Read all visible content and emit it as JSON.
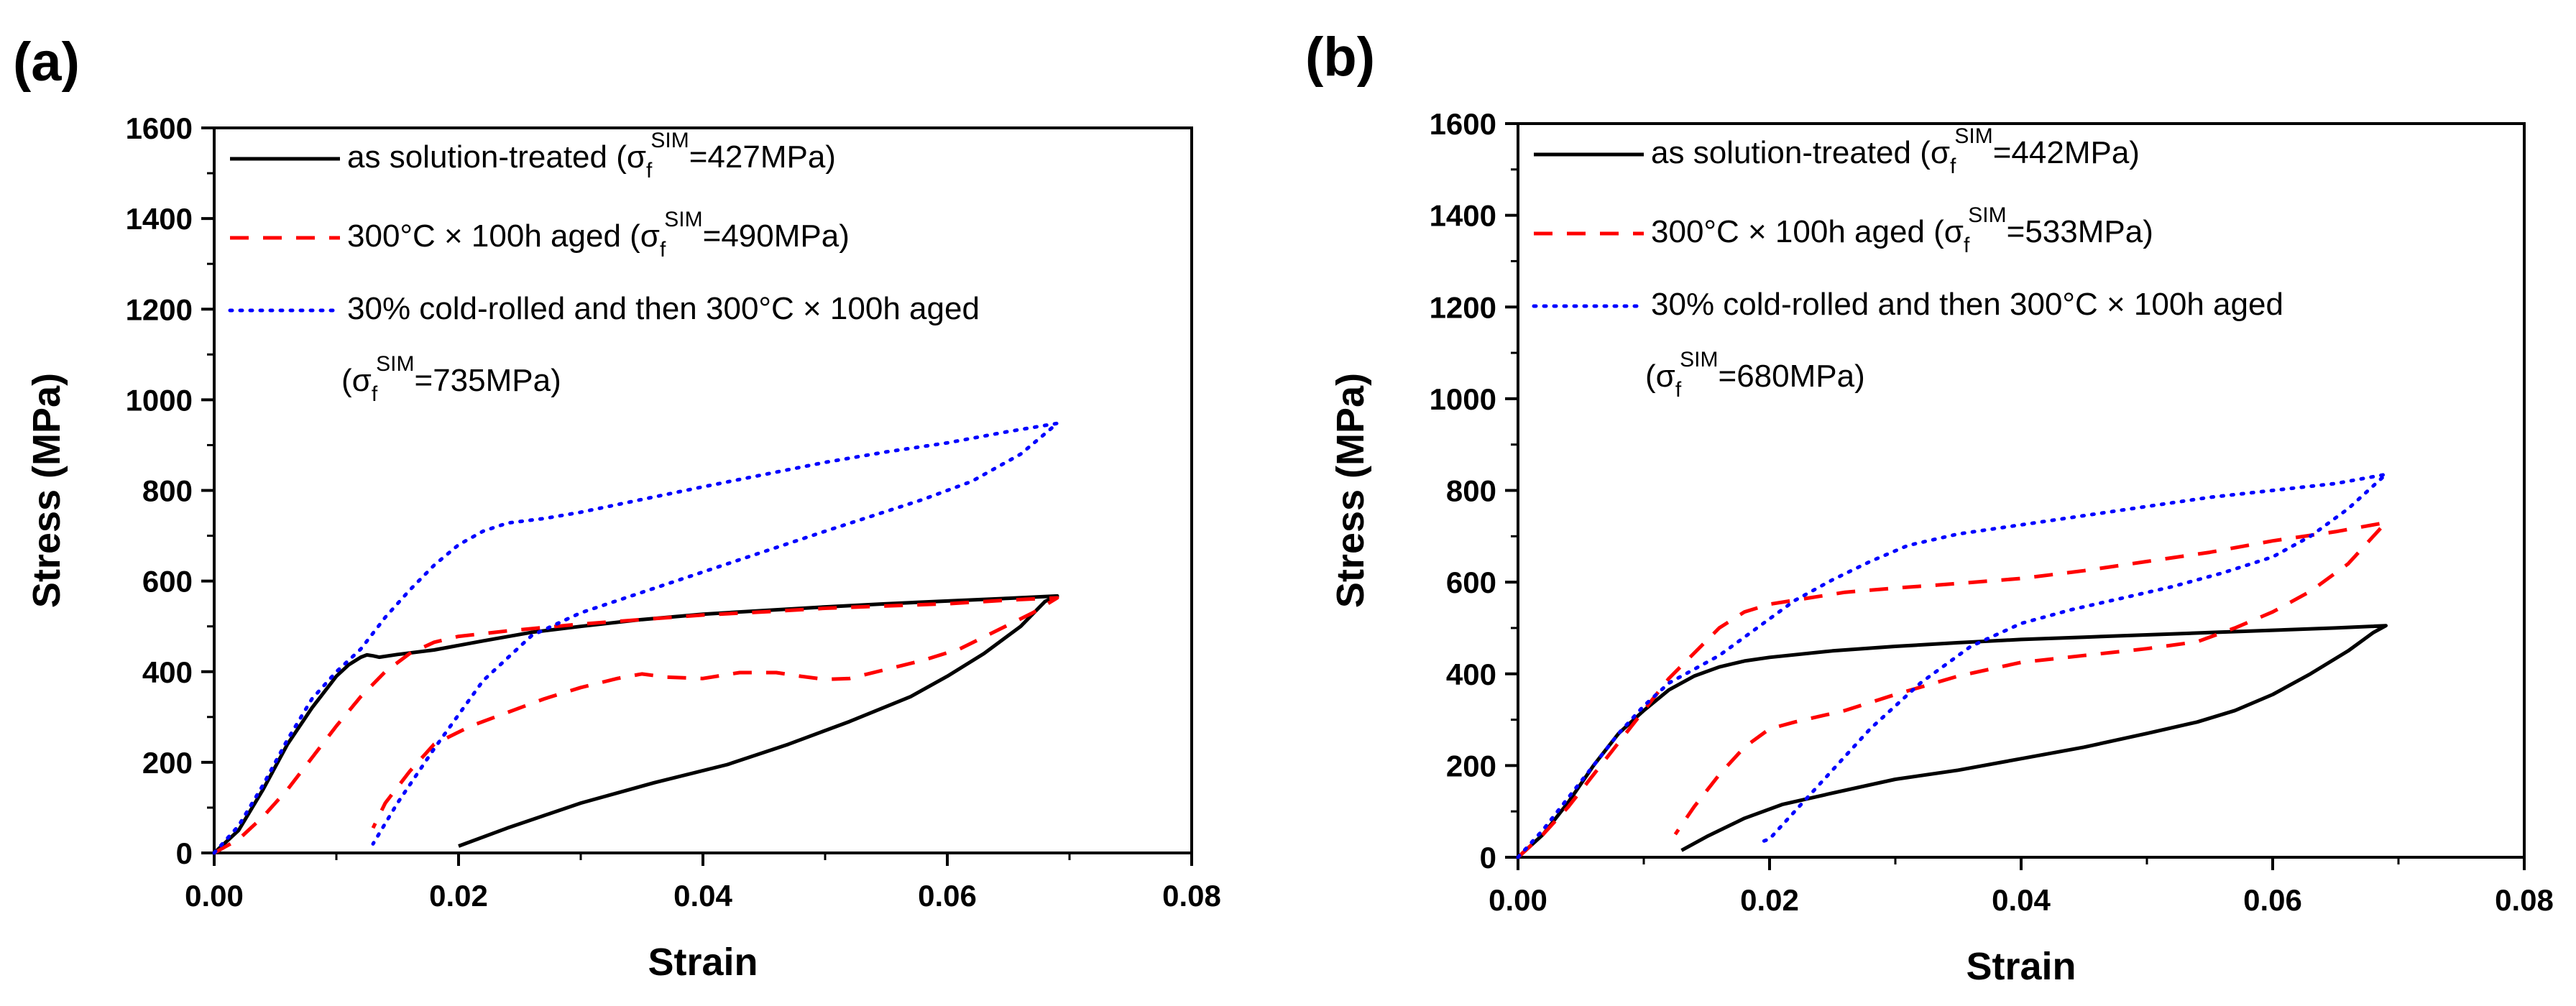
{
  "chart_data": [
    {
      "panel_label": "(a)",
      "type": "line",
      "xlabel": "Strain",
      "ylabel": "Stress (MPa)",
      "xlim": [
        0,
        0.08
      ],
      "ylim": [
        0,
        1600
      ],
      "xticks": [
        0,
        0.02,
        0.04,
        0.06,
        0.08
      ],
      "xtick_labels": [
        "0.00",
        "0.02",
        "0.04",
        "0.06",
        "0.08"
      ],
      "yticks": [
        0,
        200,
        400,
        600,
        800,
        1000,
        1200,
        1400,
        1600
      ],
      "ytick_labels": [
        "0",
        "200",
        "400",
        "600",
        "800",
        "1000",
        "1200",
        "1400",
        "1600"
      ],
      "legend_position": "top-left",
      "series": [
        {
          "name": "as solution-treated",
          "legend_pre": "as solution-treated (σ",
          "legend_sub": "f",
          "legend_sup": "SIM",
          "legend_post": "=427MPa)",
          "color": "#000000",
          "style": "solid",
          "points": [
            [
              0,
              0
            ],
            [
              0.002,
              50
            ],
            [
              0.004,
              140
            ],
            [
              0.006,
              240
            ],
            [
              0.008,
              320
            ],
            [
              0.01,
              390
            ],
            [
              0.011,
              415
            ],
            [
              0.012,
              432
            ],
            [
              0.0125,
              437
            ],
            [
              0.013,
              435
            ],
            [
              0.0135,
              432
            ],
            [
              0.015,
              438
            ],
            [
              0.018,
              448
            ],
            [
              0.022,
              468
            ],
            [
              0.026,
              487
            ],
            [
              0.03,
              500
            ],
            [
              0.035,
              515
            ],
            [
              0.04,
              527
            ],
            [
              0.045,
              535
            ],
            [
              0.05,
              543
            ],
            [
              0.055,
              550
            ],
            [
              0.06,
              556
            ],
            [
              0.065,
              562
            ],
            [
              0.069,
              567
            ],
            [
              0.068,
              555
            ],
            [
              0.066,
              500
            ],
            [
              0.063,
              440
            ],
            [
              0.06,
              390
            ],
            [
              0.057,
              345
            ],
            [
              0.052,
              290
            ],
            [
              0.047,
              240
            ],
            [
              0.042,
              195
            ],
            [
              0.036,
              155
            ],
            [
              0.03,
              110
            ],
            [
              0.024,
              55
            ],
            [
              0.02,
              15
            ]
          ]
        },
        {
          "name": "300°C × 100h aged",
          "legend_pre": "300°C × 100h aged (σ",
          "legend_sub": "f",
          "legend_sup": "SIM",
          "legend_post": "=490MPa)",
          "color": "#ff0000",
          "style": "dashed",
          "points": [
            [
              0,
              0
            ],
            [
              0.002,
              30
            ],
            [
              0.004,
              80
            ],
            [
              0.006,
              140
            ],
            [
              0.008,
              210
            ],
            [
              0.01,
              280
            ],
            [
              0.012,
              345
            ],
            [
              0.014,
              400
            ],
            [
              0.016,
              440
            ],
            [
              0.018,
              465
            ],
            [
              0.02,
              478
            ],
            [
              0.024,
              490
            ],
            [
              0.03,
              505
            ],
            [
              0.035,
              515
            ],
            [
              0.04,
              525
            ],
            [
              0.045,
              532
            ],
            [
              0.05,
              540
            ],
            [
              0.055,
              545
            ],
            [
              0.06,
              550
            ],
            [
              0.065,
              558
            ],
            [
              0.069,
              563
            ],
            [
              0.067,
              530
            ],
            [
              0.064,
              490
            ],
            [
              0.061,
              450
            ],
            [
              0.058,
              425
            ],
            [
              0.055,
              405
            ],
            [
              0.052,
              385
            ],
            [
              0.05,
              383
            ],
            [
              0.048,
              390
            ],
            [
              0.046,
              398
            ],
            [
              0.043,
              398
            ],
            [
              0.04,
              385
            ],
            [
              0.037,
              388
            ],
            [
              0.035,
              395
            ],
            [
              0.033,
              385
            ],
            [
              0.03,
              365
            ],
            [
              0.027,
              340
            ],
            [
              0.024,
              310
            ],
            [
              0.021,
              280
            ],
            [
              0.018,
              240
            ],
            [
              0.016,
              180
            ],
            [
              0.014,
              110
            ],
            [
              0.013,
              55
            ]
          ]
        },
        {
          "name": "30% cold-rolled and then 300°C × 100h aged",
          "legend_pre": "30% cold-rolled and then 300°C × 100h aged",
          "legend_line2_pre": "(σ",
          "legend_sub": "f",
          "legend_sup": "SIM",
          "legend_post": "=735MPa)",
          "color": "#0000ff",
          "style": "dotted",
          "points": [
            [
              0,
              0
            ],
            [
              0.002,
              60
            ],
            [
              0.004,
              150
            ],
            [
              0.006,
              250
            ],
            [
              0.008,
              340
            ],
            [
              0.01,
              400
            ],
            [
              0.012,
              450
            ],
            [
              0.014,
              520
            ],
            [
              0.016,
              580
            ],
            [
              0.018,
              635
            ],
            [
              0.02,
              680
            ],
            [
              0.022,
              710
            ],
            [
              0.024,
              728
            ],
            [
              0.027,
              738
            ],
            [
              0.03,
              752
            ],
            [
              0.035,
              780
            ],
            [
              0.04,
              808
            ],
            [
              0.045,
              835
            ],
            [
              0.05,
              862
            ],
            [
              0.055,
              885
            ],
            [
              0.06,
              905
            ],
            [
              0.065,
              930
            ],
            [
              0.069,
              948
            ],
            [
              0.066,
              880
            ],
            [
              0.062,
              820
            ],
            [
              0.058,
              780
            ],
            [
              0.054,
              745
            ],
            [
              0.05,
              710
            ],
            [
              0.045,
              665
            ],
            [
              0.04,
              620
            ],
            [
              0.035,
              575
            ],
            [
              0.03,
              530
            ],
            [
              0.026,
              480
            ],
            [
              0.022,
              380
            ],
            [
              0.018,
              230
            ],
            [
              0.015,
              110
            ],
            [
              0.013,
              20
            ]
          ]
        }
      ]
    },
    {
      "panel_label": "(b)",
      "type": "line",
      "xlabel": "Strain",
      "ylabel": "Stress (MPa)",
      "xlim": [
        0,
        0.08
      ],
      "ylim": [
        0,
        1600
      ],
      "xticks": [
        0,
        0.02,
        0.04,
        0.06,
        0.08
      ],
      "xtick_labels": [
        "0.00",
        "0.02",
        "0.04",
        "0.06",
        "0.08"
      ],
      "yticks": [
        0,
        200,
        400,
        600,
        800,
        1000,
        1200,
        1400,
        1600
      ],
      "ytick_labels": [
        "0",
        "200",
        "400",
        "600",
        "800",
        "1000",
        "1200",
        "1400",
        "1600"
      ],
      "legend_position": "top-left",
      "series": [
        {
          "name": "as solution-treated",
          "legend_pre": "as solution-treated (σ",
          "legend_sub": "f",
          "legend_sup": "SIM",
          "legend_post": "=442MPa)",
          "color": "#000000",
          "style": "solid",
          "points": [
            [
              0,
              0
            ],
            [
              0.002,
              50
            ],
            [
              0.004,
              120
            ],
            [
              0.006,
              200
            ],
            [
              0.008,
              270
            ],
            [
              0.01,
              320
            ],
            [
              0.012,
              365
            ],
            [
              0.014,
              395
            ],
            [
              0.016,
              415
            ],
            [
              0.018,
              428
            ],
            [
              0.02,
              436
            ],
            [
              0.025,
              450
            ],
            [
              0.03,
              460
            ],
            [
              0.035,
              468
            ],
            [
              0.04,
              475
            ],
            [
              0.045,
              480
            ],
            [
              0.05,
              485
            ],
            [
              0.055,
              490
            ],
            [
              0.06,
              495
            ],
            [
              0.065,
              500
            ],
            [
              0.069,
              505
            ],
            [
              0.068,
              490
            ],
            [
              0.066,
              450
            ],
            [
              0.063,
              400
            ],
            [
              0.06,
              355
            ],
            [
              0.057,
              320
            ],
            [
              0.054,
              295
            ],
            [
              0.05,
              270
            ],
            [
              0.045,
              240
            ],
            [
              0.04,
              215
            ],
            [
              0.035,
              190
            ],
            [
              0.03,
              170
            ],
            [
              0.025,
              140
            ],
            [
              0.021,
              115
            ],
            [
              0.018,
              85
            ],
            [
              0.015,
              45
            ],
            [
              0.013,
              15
            ]
          ]
        },
        {
          "name": "300°C × 100h aged",
          "legend_pre": "300°C × 100h aged (σ",
          "legend_sub": "f",
          "legend_sup": "SIM",
          "legend_post": "=533MPa)",
          "color": "#ff0000",
          "style": "dashed",
          "points": [
            [
              0,
              0
            ],
            [
              0.002,
              50
            ],
            [
              0.004,
              110
            ],
            [
              0.006,
              180
            ],
            [
              0.008,
              250
            ],
            [
              0.01,
              320
            ],
            [
              0.012,
              390
            ],
            [
              0.014,
              445
            ],
            [
              0.016,
              500
            ],
            [
              0.018,
              535
            ],
            [
              0.02,
              552
            ],
            [
              0.023,
              565
            ],
            [
              0.026,
              578
            ],
            [
              0.03,
              587
            ],
            [
              0.035,
              597
            ],
            [
              0.04,
              608
            ],
            [
              0.045,
              625
            ],
            [
              0.05,
              645
            ],
            [
              0.055,
              665
            ],
            [
              0.06,
              690
            ],
            [
              0.065,
              710
            ],
            [
              0.069,
              730
            ],
            [
              0.068,
              700
            ],
            [
              0.066,
              640
            ],
            [
              0.063,
              580
            ],
            [
              0.06,
              535
            ],
            [
              0.057,
              500
            ],
            [
              0.054,
              470
            ],
            [
              0.05,
              455
            ],
            [
              0.045,
              440
            ],
            [
              0.04,
              425
            ],
            [
              0.035,
              395
            ],
            [
              0.03,
              355
            ],
            [
              0.026,
              320
            ],
            [
              0.022,
              295
            ],
            [
              0.02,
              280
            ],
            [
              0.018,
              240
            ],
            [
              0.016,
              180
            ],
            [
              0.014,
              110
            ],
            [
              0.0125,
              50
            ]
          ]
        },
        {
          "name": "30% cold-rolled and then 300°C × 100h aged",
          "legend_pre": "30% cold-rolled and then 300°C × 100h aged",
          "legend_line2_pre": "(σ",
          "legend_sub": "f",
          "legend_sup": "SIM",
          "legend_post": "=680MPa)",
          "color": "#0000ff",
          "style": "dotted",
          "points": [
            [
              0,
              0
            ],
            [
              0.002,
              60
            ],
            [
              0.004,
              130
            ],
            [
              0.006,
              200
            ],
            [
              0.008,
              270
            ],
            [
              0.01,
              330
            ],
            [
              0.012,
              380
            ],
            [
              0.014,
              410
            ],
            [
              0.016,
              440
            ],
            [
              0.018,
              480
            ],
            [
              0.02,
              520
            ],
            [
              0.022,
              560
            ],
            [
              0.025,
              605
            ],
            [
              0.028,
              645
            ],
            [
              0.031,
              680
            ],
            [
              0.035,
              705
            ],
            [
              0.04,
              725
            ],
            [
              0.045,
              745
            ],
            [
              0.05,
              765
            ],
            [
              0.055,
              785
            ],
            [
              0.06,
              800
            ],
            [
              0.065,
              815
            ],
            [
              0.069,
              835
            ],
            [
              0.068,
              810
            ],
            [
              0.066,
              760
            ],
            [
              0.063,
              700
            ],
            [
              0.06,
              655
            ],
            [
              0.056,
              620
            ],
            [
              0.052,
              590
            ],
            [
              0.048,
              565
            ],
            [
              0.044,
              540
            ],
            [
              0.04,
              510
            ],
            [
              0.036,
              460
            ],
            [
              0.032,
              380
            ],
            [
              0.028,
              280
            ],
            [
              0.025,
              190
            ],
            [
              0.022,
              100
            ],
            [
              0.02,
              40
            ],
            [
              0.019,
              30
            ]
          ]
        }
      ]
    }
  ]
}
